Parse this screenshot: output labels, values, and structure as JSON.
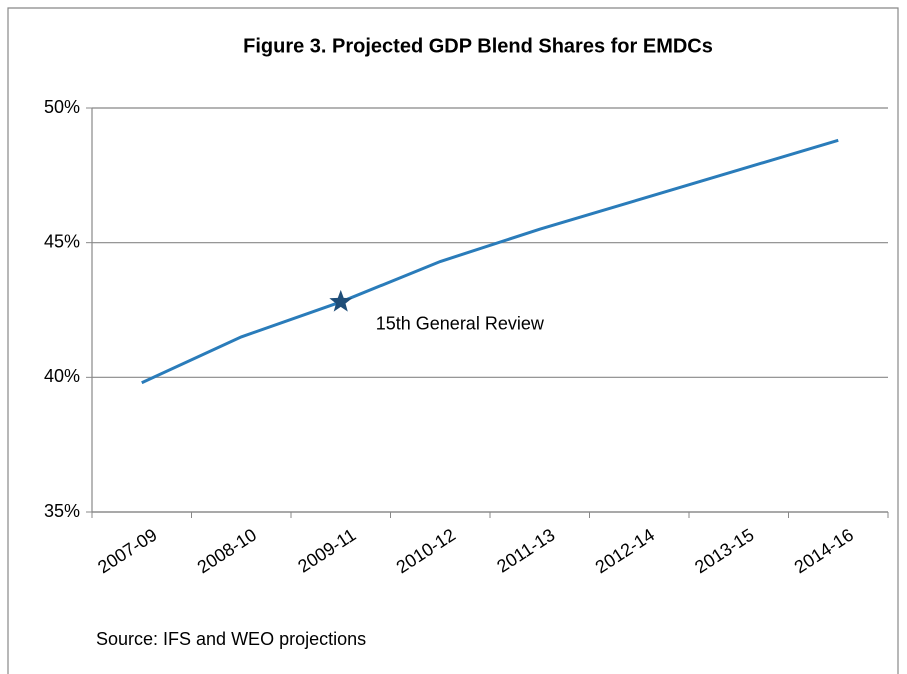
{
  "chart_data": {
    "type": "line",
    "title": "Figure 3. Projected GDP Blend Shares for EMDCs",
    "categories": [
      "2007-09",
      "2008-10",
      "2009-11",
      "2010-12",
      "2011-13",
      "2012-14",
      "2013-15",
      "2014-16"
    ],
    "series": [
      {
        "name": "GDP Blend Share",
        "color": "#2a7cba",
        "values": [
          39.8,
          41.5,
          42.8,
          44.3,
          45.5,
          46.6,
          47.7,
          48.8
        ]
      }
    ],
    "ylim": [
      35,
      50
    ],
    "yticks": [
      {
        "value": 35,
        "label": "35%"
      },
      {
        "value": 40,
        "label": "40%"
      },
      {
        "value": 45,
        "label": "45%"
      },
      {
        "value": 50,
        "label": "50%"
      }
    ],
    "grid": true,
    "legend": false,
    "annotation": {
      "text": "15th General Review",
      "category": "2009-11",
      "color": "#1f4e79"
    },
    "source": "Source: IFS and WEO projections"
  }
}
